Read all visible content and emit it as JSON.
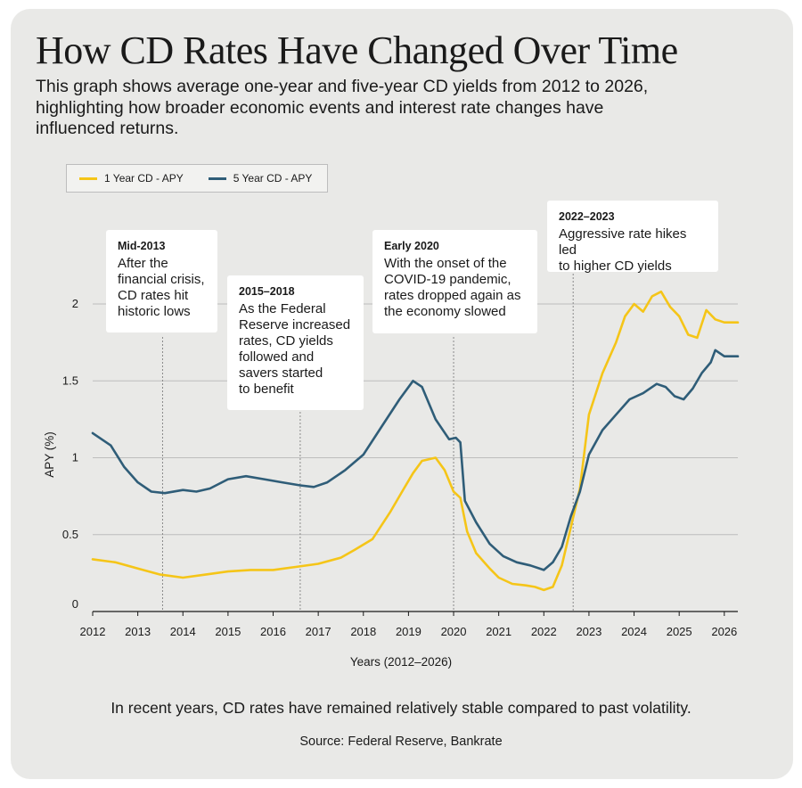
{
  "title": "How CD Rates Have Changed Over Time",
  "subtitle": "This graph shows average one-year and five-year CD yields from 2012 to 2026, highlighting how broader economic events and interest rate changes have influenced returns.",
  "footnote": "In recent years, CD rates have remained relatively stable compared to past volatility.",
  "source": "Source: Federal Reserve, Bankrate",
  "colors": {
    "card_bg": "#e9e9e7",
    "one_year": "#f5c518",
    "five_year": "#2f5d78",
    "grid": "#bdbdbd"
  },
  "chart_data": {
    "type": "line",
    "title": "How CD Rates Have Changed Over Time",
    "xlabel": "Years (2012–2026)",
    "ylabel": "APY (%)",
    "xlim": [
      2012,
      2026.3
    ],
    "ylim": [
      0,
      2.2
    ],
    "x_ticks": [
      "2012",
      "2013",
      "2014",
      "2015",
      "2016",
      "2017",
      "2018",
      "2019",
      "2020",
      "2021",
      "2022",
      "2023",
      "2024",
      "2025",
      "2026"
    ],
    "y_ticks": [
      "0",
      "0.5",
      "1",
      "1.5",
      "2"
    ],
    "grid": "horizontal",
    "legend_position": "top-left",
    "series": [
      {
        "name": "1 Year CD - APY",
        "color": "#f5c518",
        "points": [
          [
            2012.0,
            0.34
          ],
          [
            2012.5,
            0.32
          ],
          [
            2013.0,
            0.28
          ],
          [
            2013.5,
            0.24
          ],
          [
            2014.0,
            0.22
          ],
          [
            2014.5,
            0.24
          ],
          [
            2015.0,
            0.26
          ],
          [
            2015.5,
            0.27
          ],
          [
            2016.0,
            0.27
          ],
          [
            2016.5,
            0.29
          ],
          [
            2017.0,
            0.31
          ],
          [
            2017.5,
            0.35
          ],
          [
            2017.8,
            0.4
          ],
          [
            2018.2,
            0.47
          ],
          [
            2018.6,
            0.65
          ],
          [
            2018.9,
            0.8
          ],
          [
            2019.1,
            0.9
          ],
          [
            2019.3,
            0.98
          ],
          [
            2019.6,
            1.0
          ],
          [
            2019.8,
            0.92
          ],
          [
            2020.0,
            0.78
          ],
          [
            2020.15,
            0.74
          ],
          [
            2020.3,
            0.52
          ],
          [
            2020.5,
            0.38
          ],
          [
            2020.8,
            0.28
          ],
          [
            2021.0,
            0.22
          ],
          [
            2021.3,
            0.18
          ],
          [
            2021.6,
            0.17
          ],
          [
            2021.8,
            0.16
          ],
          [
            2022.0,
            0.14
          ],
          [
            2022.2,
            0.16
          ],
          [
            2022.4,
            0.3
          ],
          [
            2022.6,
            0.55
          ],
          [
            2022.8,
            0.8
          ],
          [
            2023.0,
            1.28
          ],
          [
            2023.3,
            1.55
          ],
          [
            2023.6,
            1.75
          ],
          [
            2023.8,
            1.92
          ],
          [
            2024.0,
            2.0
          ],
          [
            2024.2,
            1.95
          ],
          [
            2024.4,
            2.05
          ],
          [
            2024.6,
            2.08
          ],
          [
            2024.8,
            1.98
          ],
          [
            2025.0,
            1.92
          ],
          [
            2025.2,
            1.8
          ],
          [
            2025.4,
            1.78
          ],
          [
            2025.6,
            1.96
          ],
          [
            2025.8,
            1.9
          ],
          [
            2026.0,
            1.88
          ],
          [
            2026.3,
            1.88
          ]
        ]
      },
      {
        "name": "5 Year CD - APY",
        "color": "#2f5d78",
        "points": [
          [
            2012.0,
            1.16
          ],
          [
            2012.4,
            1.08
          ],
          [
            2012.7,
            0.94
          ],
          [
            2013.0,
            0.84
          ],
          [
            2013.3,
            0.78
          ],
          [
            2013.6,
            0.77
          ],
          [
            2014.0,
            0.79
          ],
          [
            2014.3,
            0.78
          ],
          [
            2014.6,
            0.8
          ],
          [
            2015.0,
            0.86
          ],
          [
            2015.4,
            0.88
          ],
          [
            2015.8,
            0.86
          ],
          [
            2016.2,
            0.84
          ],
          [
            2016.6,
            0.82
          ],
          [
            2016.9,
            0.81
          ],
          [
            2017.2,
            0.84
          ],
          [
            2017.6,
            0.92
          ],
          [
            2018.0,
            1.02
          ],
          [
            2018.4,
            1.2
          ],
          [
            2018.8,
            1.38
          ],
          [
            2019.1,
            1.5
          ],
          [
            2019.3,
            1.46
          ],
          [
            2019.6,
            1.25
          ],
          [
            2019.9,
            1.12
          ],
          [
            2020.05,
            1.13
          ],
          [
            2020.15,
            1.1
          ],
          [
            2020.25,
            0.72
          ],
          [
            2020.5,
            0.58
          ],
          [
            2020.8,
            0.44
          ],
          [
            2021.1,
            0.36
          ],
          [
            2021.4,
            0.32
          ],
          [
            2021.7,
            0.3
          ],
          [
            2022.0,
            0.27
          ],
          [
            2022.2,
            0.32
          ],
          [
            2022.4,
            0.42
          ],
          [
            2022.6,
            0.62
          ],
          [
            2022.8,
            0.78
          ],
          [
            2023.0,
            1.02
          ],
          [
            2023.3,
            1.18
          ],
          [
            2023.6,
            1.28
          ],
          [
            2023.9,
            1.38
          ],
          [
            2024.2,
            1.42
          ],
          [
            2024.5,
            1.48
          ],
          [
            2024.7,
            1.46
          ],
          [
            2024.9,
            1.4
          ],
          [
            2025.1,
            1.38
          ],
          [
            2025.3,
            1.45
          ],
          [
            2025.5,
            1.55
          ],
          [
            2025.7,
            1.62
          ],
          [
            2025.8,
            1.7
          ],
          [
            2026.0,
            1.66
          ],
          [
            2026.3,
            1.66
          ]
        ]
      }
    ],
    "annotations": [
      {
        "title": "Mid-2013",
        "text": "After the\nfinancial crisis,\nCD rates hit\nhistoric lows",
        "x": 2013.55
      },
      {
        "title": "2015–2018",
        "text": "As the Federal\nReserve increased\nrates, CD yields\nfollowed and\nsavers started\nto benefit",
        "x": 2016.6
      },
      {
        "title": "Early 2020",
        "text": "With the onset of the\nCOVID-19 pandemic,\nrates dropped again as\nthe economy slowed",
        "x": 2020.0
      },
      {
        "title": "2022–2023",
        "text": "Aggressive rate hikes led\nto higher CD yields",
        "x": 2022.65
      }
    ]
  }
}
